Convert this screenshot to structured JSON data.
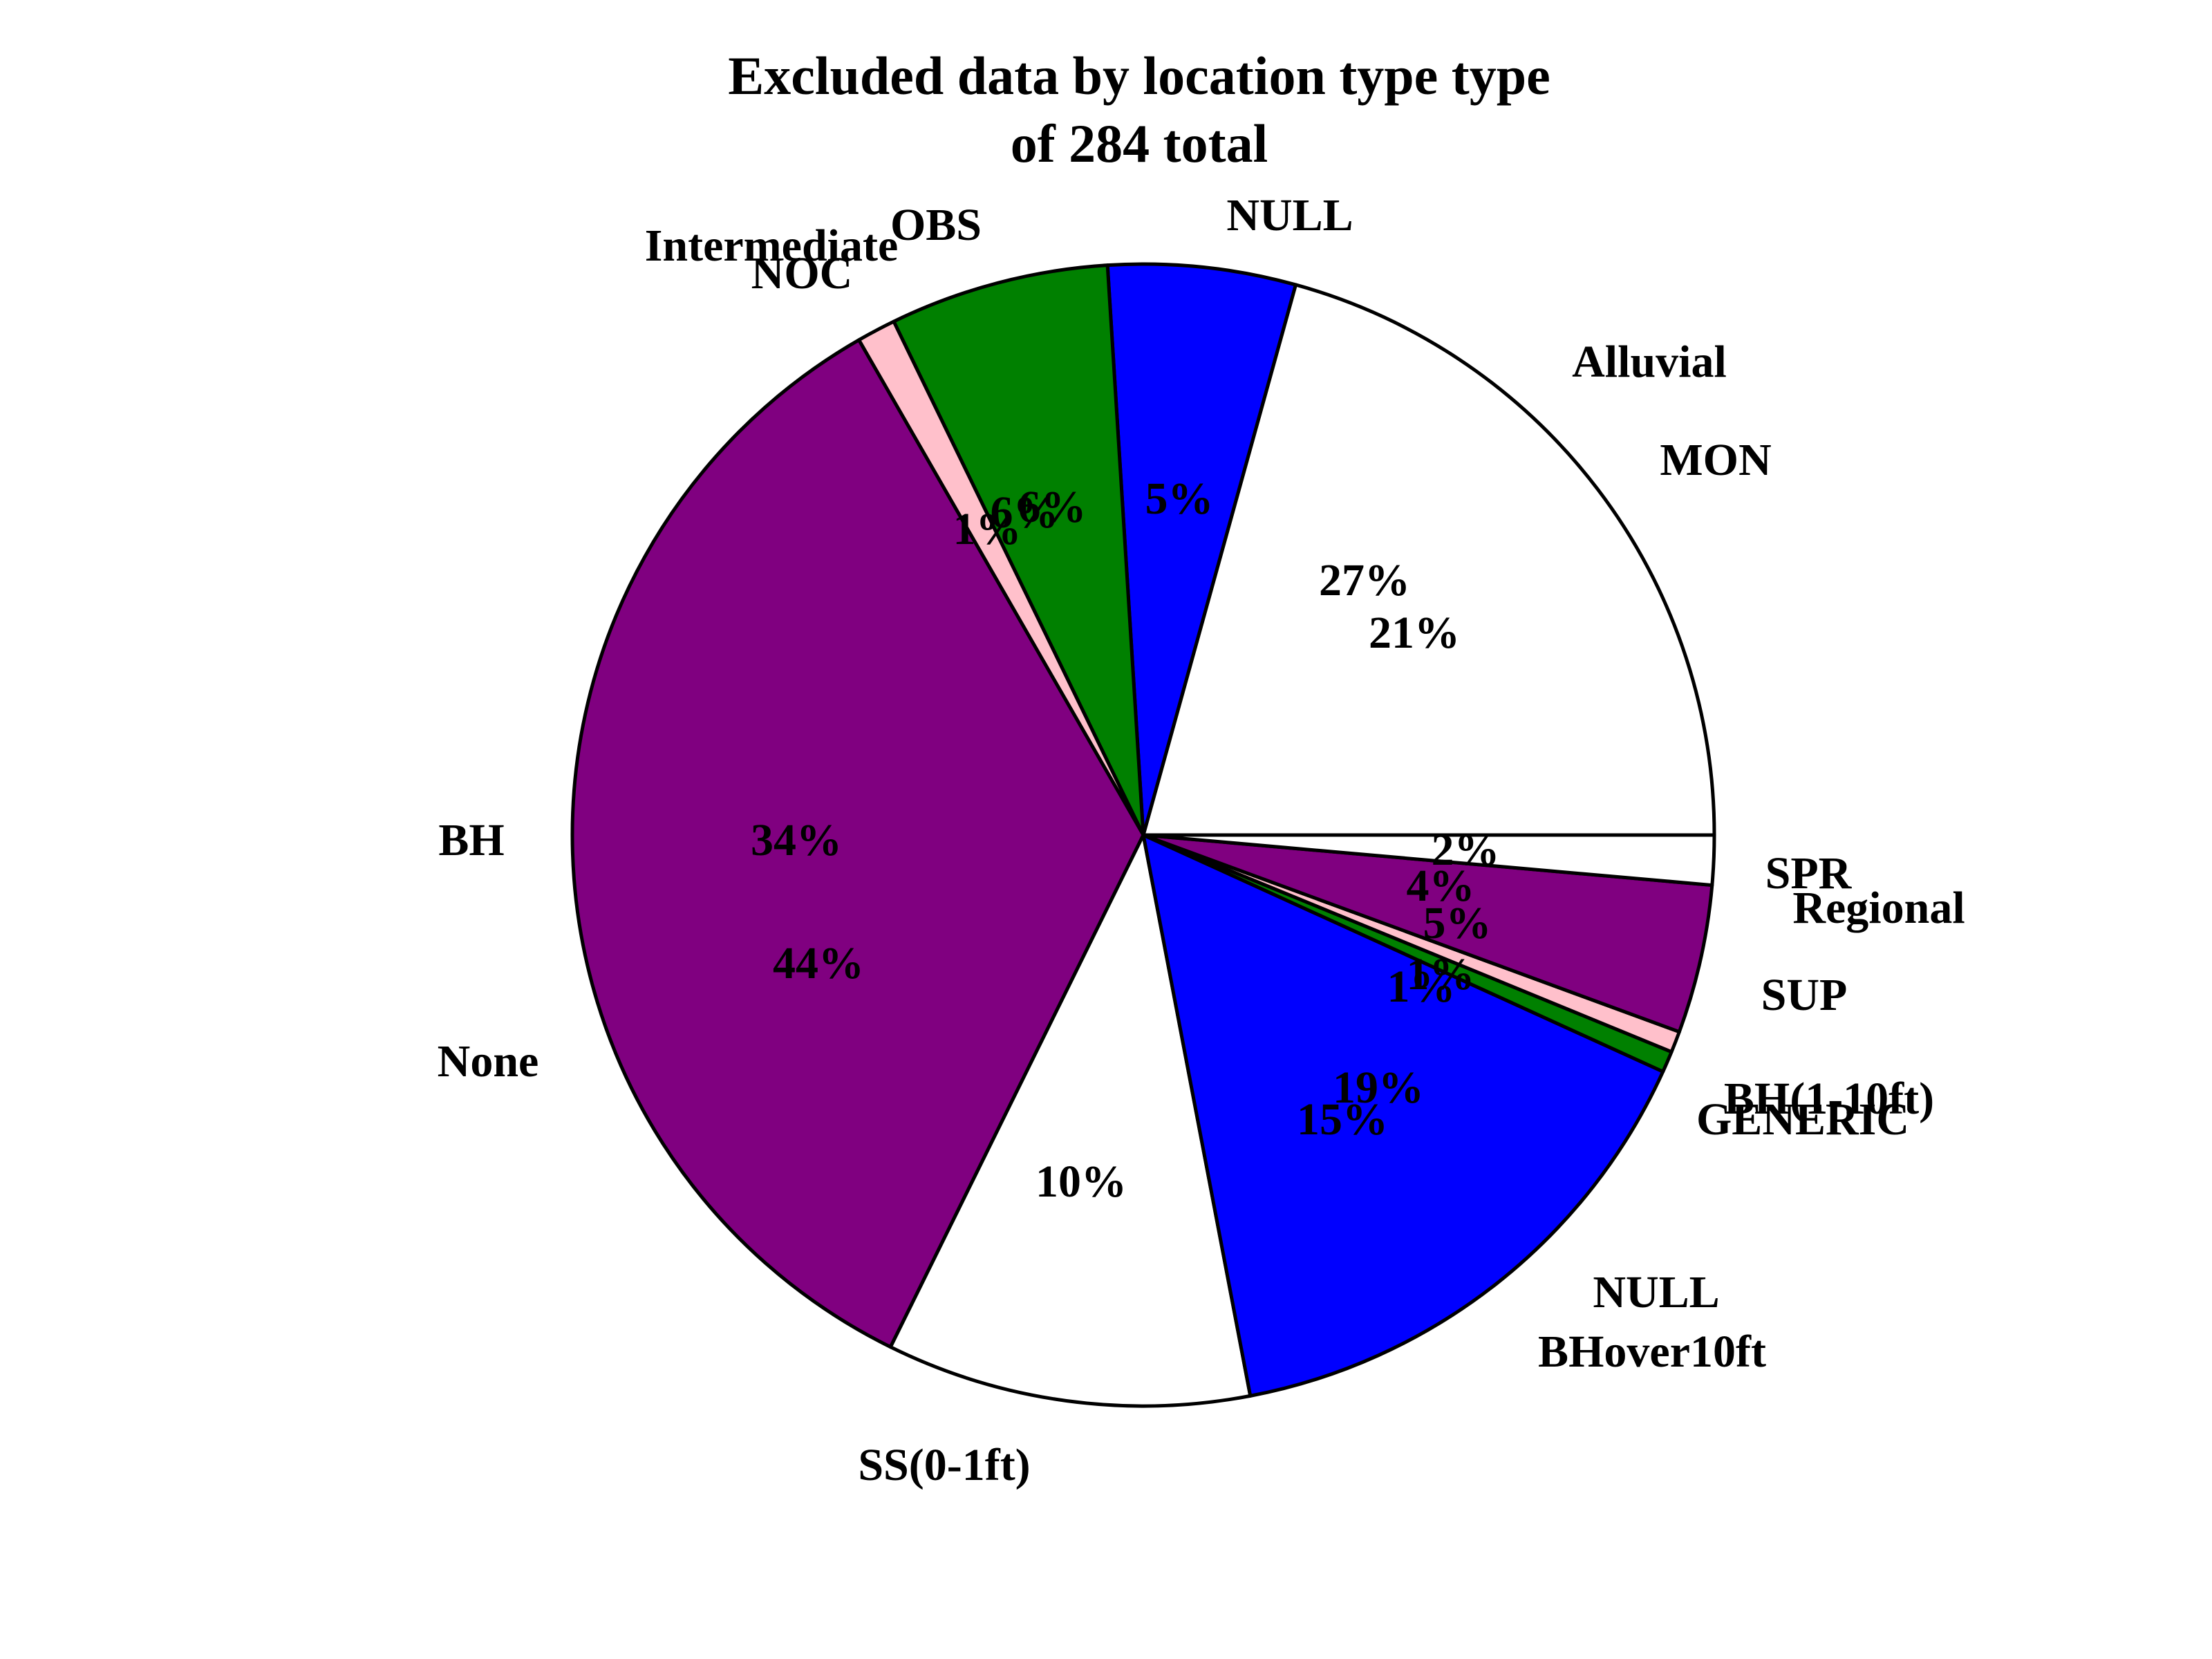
{
  "chart_data": {
    "type": "pie",
    "title": "Excluded data by location type type",
    "subtitle": "of 284 total",
    "legend": "none",
    "slices": [
      {
        "id": "mon",
        "label": "MON",
        "pct_label": "21%",
        "value": 20.7,
        "color": "#ffffff"
      },
      {
        "id": "null-a",
        "label": "NULL",
        "pct_label": "5%",
        "value": 5.3,
        "color": "#0000ff"
      },
      {
        "id": "obs",
        "label": "OBS",
        "pct_label": "6%",
        "value": 6.2,
        "color": "#008000"
      },
      {
        "id": "noc",
        "label": "NOC",
        "pct_label": "1%",
        "value": 1.1,
        "color": "#ffc0cb"
      },
      {
        "id": "bh",
        "label": "BH",
        "pct_label": "34%",
        "value": 34.4,
        "color": "#800080"
      },
      {
        "id": "ss01",
        "label": "SS(0-1ft)",
        "pct_label": "10%",
        "value": 10.3,
        "color": "#ffffff"
      },
      {
        "id": "bhover10",
        "label": "BHover10ft",
        "pct_label": "15%",
        "value": 15.2,
        "color": "#0000ff"
      },
      {
        "id": "generic",
        "label": "GENERIC",
        "pct_label": "1%",
        "value": 0.6,
        "color": "#008000"
      },
      {
        "id": "bh110",
        "label": "BH(1-10ft)",
        "pct_label": "1%",
        "value": 0.6,
        "color": "#ffc0cb"
      },
      {
        "id": "sup",
        "label": "SUP",
        "pct_label": "4%",
        "value": 4.2,
        "color": "#800080"
      },
      {
        "id": "spr",
        "label": "SPR",
        "pct_label": "2%",
        "value": 1.4,
        "color": "#ffffff"
      }
    ],
    "overlay_labels": [
      {
        "id": "alluvial",
        "label": "Alluvial",
        "pct_label": "27%"
      },
      {
        "id": "intermediate",
        "label": "Intermediate",
        "pct_label": "6%"
      },
      {
        "id": "none",
        "label": "None",
        "pct_label": "44%"
      },
      {
        "id": "null-b",
        "label": "NULL",
        "pct_label": "19%"
      },
      {
        "id": "regional",
        "label": "Regional",
        "pct_label": "5%"
      }
    ]
  }
}
